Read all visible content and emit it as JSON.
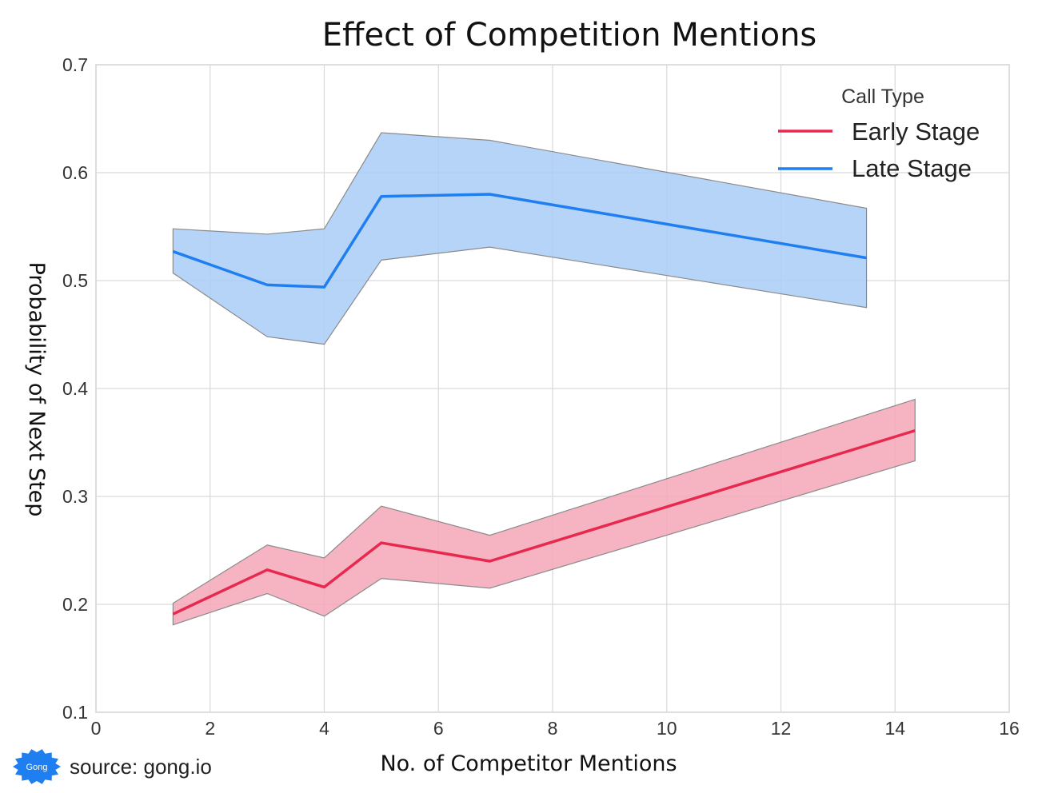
{
  "chart_data": {
    "type": "line",
    "title": "Effect of Competition Mentions",
    "xlabel": "No. of Competitor Mentions",
    "ylabel": "Probability of Next Step",
    "xlim": [
      0,
      16
    ],
    "ylim": [
      0.1,
      0.7
    ],
    "xticks": [
      "0",
      "2",
      "4",
      "6",
      "8",
      "10",
      "12",
      "14",
      "16"
    ],
    "yticks": [
      "0.1",
      "0.2",
      "0.3",
      "0.4",
      "0.5",
      "0.6",
      "0.7"
    ],
    "xtick_values": [
      0,
      2,
      4,
      6,
      8,
      10,
      12,
      14,
      16
    ],
    "ytick_values": [
      0.1,
      0.2,
      0.3,
      0.4,
      0.5,
      0.6,
      0.7
    ],
    "grid": true,
    "legend": {
      "title": "Call Type",
      "placement": "top-right"
    },
    "series": [
      {
        "name": "Early Stage",
        "color": "#e8294f",
        "band_color": "#f4a7b9",
        "x": [
          1.35,
          3.0,
          4.0,
          5.0,
          6.9,
          14.35
        ],
        "y": [
          0.191,
          0.232,
          0.216,
          0.257,
          0.24,
          0.361
        ],
        "ci_low": [
          0.181,
          0.21,
          0.189,
          0.224,
          0.215,
          0.333
        ],
        "ci_high": [
          0.201,
          0.255,
          0.243,
          0.291,
          0.264,
          0.39
        ]
      },
      {
        "name": "Late Stage",
        "color": "#1f7ff0",
        "band_color": "#a9cdf7",
        "x": [
          1.35,
          3.0,
          4.0,
          5.0,
          6.9,
          13.5
        ],
        "y": [
          0.527,
          0.496,
          0.494,
          0.578,
          0.58,
          0.521
        ],
        "ci_low": [
          0.507,
          0.448,
          0.441,
          0.519,
          0.531,
          0.475
        ],
        "ci_high": [
          0.548,
          0.543,
          0.548,
          0.637,
          0.63,
          0.567
        ]
      }
    ]
  },
  "footer": {
    "source": "source: gong.io",
    "logo_text": "Gong",
    "logo_color": "#1f7ff0"
  }
}
